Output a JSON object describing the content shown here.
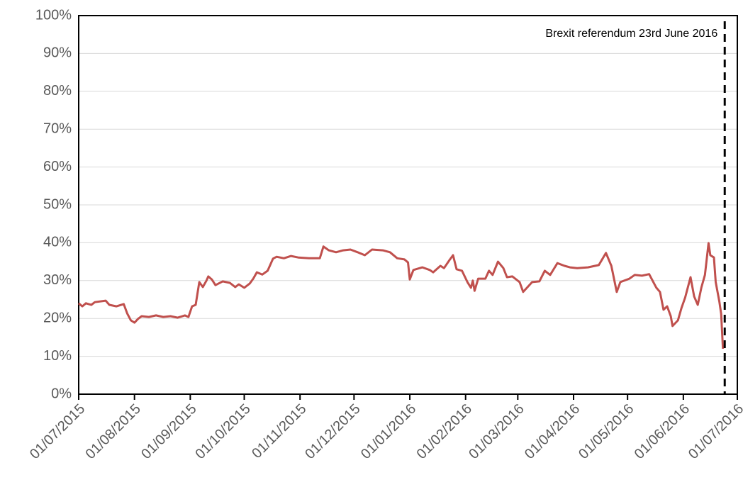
{
  "chart_data": {
    "type": "line",
    "annotation": {
      "text": "Brexit referendum 23rd June 2016",
      "x": "24/06/2016"
    },
    "x": [
      "01/07/2015",
      "03/07/2015",
      "05/07/2015",
      "08/07/2015",
      "10/07/2015",
      "16/07/2015",
      "18/07/2015",
      "22/07/2015",
      "26/07/2015",
      "28/07/2015",
      "30/07/2015",
      "01/08/2015",
      "03/08/2015",
      "05/08/2015",
      "09/08/2015",
      "13/08/2015",
      "17/08/2015",
      "21/08/2015",
      "25/08/2015",
      "29/08/2015",
      "31/08/2015",
      "02/09/2015",
      "04/09/2015",
      "06/09/2015",
      "08/09/2015",
      "10/09/2015",
      "11/09/2015",
      "13/09/2015",
      "15/09/2015",
      "19/09/2015",
      "23/09/2015",
      "26/09/2015",
      "28/09/2015",
      "01/10/2015",
      "04/10/2015",
      "06/10/2015",
      "08/10/2015",
      "11/10/2015",
      "14/10/2015",
      "17/10/2015",
      "19/10/2015",
      "23/10/2015",
      "27/10/2015",
      "31/10/2015",
      "06/11/2015",
      "12/11/2015",
      "14/11/2015",
      "17/11/2015",
      "21/11/2015",
      "25/11/2015",
      "29/11/2015",
      "03/12/2015",
      "07/12/2015",
      "11/12/2015",
      "17/12/2015",
      "21/12/2015",
      "25/12/2015",
      "29/12/2015",
      "31/12/2015",
      "01/01/2016",
      "03/01/2016",
      "08/01/2016",
      "12/01/2016",
      "14/01/2016",
      "18/01/2016",
      "20/01/2016",
      "23/01/2016",
      "25/01/2016",
      "27/01/2016",
      "30/01/2016",
      "02/02/2016",
      "04/02/2016",
      "05/02/2016",
      "06/02/2016",
      "08/02/2016",
      "12/02/2016",
      "14/02/2016",
      "16/02/2016",
      "19/02/2016",
      "22/02/2016",
      "24/02/2016",
      "27/02/2016",
      "02/03/2016",
      "04/03/2016",
      "09/03/2016",
      "13/03/2016",
      "16/03/2016",
      "19/03/2016",
      "23/03/2016",
      "27/03/2016",
      "30/03/2016",
      "03/04/2016",
      "09/04/2016",
      "15/04/2016",
      "19/04/2016",
      "22/04/2016",
      "25/04/2016",
      "27/04/2016",
      "02/05/2016",
      "05/05/2016",
      "09/05/2016",
      "13/05/2016",
      "17/05/2016",
      "19/05/2016",
      "21/05/2016",
      "23/05/2016",
      "25/05/2016",
      "26/05/2016",
      "29/05/2016",
      "31/05/2016",
      "02/06/2016",
      "05/06/2016",
      "07/06/2016",
      "09/06/2016",
      "11/06/2016",
      "13/06/2016",
      "15/06/2016",
      "16/06/2016",
      "18/06/2016",
      "19/06/2016",
      "21/06/2016",
      "22/06/2016",
      "23/06/2016"
    ],
    "values": [
      24,
      23.2,
      24,
      23.6,
      24.3,
      24.7,
      23.6,
      23.2,
      23.8,
      21.3,
      19.5,
      18.9,
      19.9,
      20.6,
      20.4,
      20.8,
      20.4,
      20.6,
      20.2,
      20.8,
      20.4,
      23.2,
      23.6,
      29.6,
      28.3,
      30,
      31.1,
      30.3,
      28.8,
      29.8,
      29.4,
      28.3,
      29,
      28.1,
      29.2,
      30.5,
      32.2,
      31.6,
      32.6,
      35.8,
      36.3,
      35.9,
      36.5,
      36.1,
      35.9,
      35.9,
      39,
      38,
      37.5,
      38,
      38.2,
      37.5,
      36.7,
      38.2,
      38,
      37.5,
      35.9,
      35.6,
      34.8,
      30.3,
      32.8,
      33.5,
      32.8,
      32.2,
      33.9,
      33.3,
      35.4,
      36.7,
      33,
      32.6,
      29.6,
      28.1,
      30,
      27.3,
      30.5,
      30.5,
      32.6,
      31.5,
      35,
      33.3,
      30.9,
      31.1,
      29.6,
      27,
      29.6,
      29.8,
      32.6,
      31.5,
      34.6,
      33.9,
      33.5,
      33.3,
      33.5,
      34.1,
      37.3,
      33.9,
      27,
      29.6,
      30.5,
      31.5,
      31.3,
      31.7,
      28.1,
      27,
      22.3,
      23.2,
      20.6,
      18,
      19.5,
      22.8,
      25.5,
      30.9,
      25.8,
      23.6,
      28.1,
      31.5,
      39.9,
      36.7,
      36.1,
      29.6,
      24.5,
      21.2,
      12
    ],
    "color": "#c0504d",
    "xlim": [
      "01/07/2015",
      "01/07/2016"
    ],
    "xticks": [
      "01/07/2015",
      "01/08/2015",
      "01/09/2015",
      "01/10/2015",
      "01/11/2015",
      "01/12/2015",
      "01/01/2016",
      "01/02/2016",
      "01/03/2016",
      "01/04/2016",
      "01/05/2016",
      "01/06/2016",
      "01/07/2016"
    ],
    "ylim": [
      0,
      100
    ],
    "yticks": [
      {
        "value": 0,
        "label": "0%"
      },
      {
        "value": 10,
        "label": "10%"
      },
      {
        "value": 20,
        "label": "20%"
      },
      {
        "value": 30,
        "label": "30%"
      },
      {
        "value": 40,
        "label": "40%"
      },
      {
        "value": 50,
        "label": "50%"
      },
      {
        "value": 60,
        "label": "60%"
      },
      {
        "value": 70,
        "label": "70%"
      },
      {
        "value": 80,
        "label": "80%"
      },
      {
        "value": 90,
        "label": "90%"
      },
      {
        "value": 100,
        "label": "100%"
      }
    ],
    "grid": true
  }
}
